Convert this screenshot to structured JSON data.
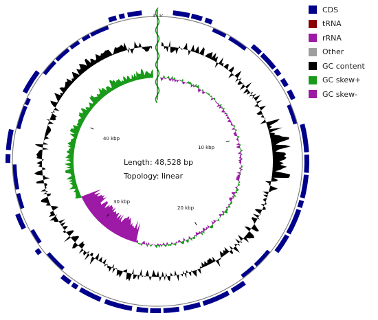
{
  "legend": {
    "items": [
      {
        "label": "CDS",
        "color": "#00008B"
      },
      {
        "label": "tRNA",
        "color": "#8B0000"
      },
      {
        "label": "rRNA",
        "color": "#9C1AA6"
      },
      {
        "label": "Other",
        "color": "#9E9E9E"
      },
      {
        "label": "GC content",
        "color": "#000000"
      },
      {
        "label": "GC skew+",
        "color": "#1A9A1A"
      },
      {
        "label": "GC skew-",
        "color": "#9C1AA6"
      }
    ]
  },
  "genome": {
    "length_text": "Length: 48,528 bp",
    "topology_text": "Topology: linear",
    "length_bp": 48528,
    "end_left": "3'",
    "end_right": "5'"
  },
  "ticks": [
    {
      "label": "10 kbp",
      "bp": 10000
    },
    {
      "label": "20 kbp",
      "bp": 20000
    },
    {
      "label": "30 kbp",
      "bp": 30000
    },
    {
      "label": "40 kbp",
      "bp": 40000
    }
  ],
  "colors": {
    "cds": "#00008B",
    "gc_content": "#000000",
    "skew_pos": "#1A9A1A",
    "skew_neg": "#9C1AA6",
    "ring": "#808080"
  }
}
